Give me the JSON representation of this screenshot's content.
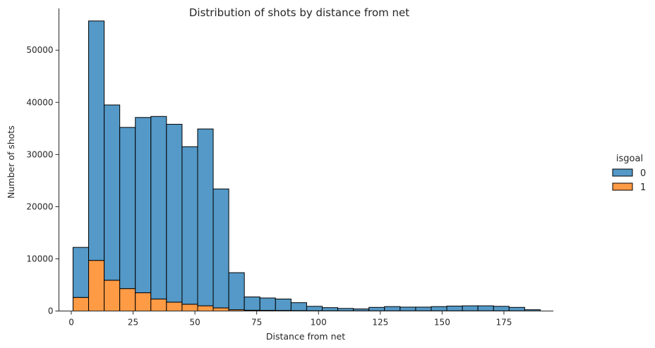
{
  "chart_data": {
    "type": "bar",
    "title": "Distribution of shots by distance from net",
    "xlabel": "Distance from net",
    "ylabel": "Number of shots",
    "xlim": [
      -5,
      195
    ],
    "ylim": [
      0,
      58000
    ],
    "xticks": [
      0,
      25,
      50,
      75,
      100,
      125,
      150,
      175
    ],
    "yticks": [
      0,
      10000,
      20000,
      30000,
      40000,
      50000
    ],
    "bin_edges": [
      0.7,
      7.0,
      13.3,
      19.6,
      25.9,
      32.2,
      38.5,
      44.8,
      51.1,
      57.4,
      63.7,
      70.0,
      76.3,
      82.6,
      88.9,
      95.2,
      101.5,
      107.8,
      114.1,
      120.4,
      126.7,
      133.0,
      139.3,
      145.6,
      151.9,
      158.2,
      164.5,
      170.8,
      177.1,
      183.4,
      189.7
    ],
    "stacked": true,
    "legend_title": "isgoal",
    "legend_position": "right",
    "grid": false,
    "series": [
      {
        "name": "1",
        "color": "#ff9a45",
        "edge_color": "#000000",
        "values": [
          2600,
          9700,
          5900,
          4300,
          3500,
          2300,
          1700,
          1300,
          1000,
          600,
          250,
          150,
          120,
          100,
          80,
          60,
          50,
          40,
          40,
          40,
          40,
          40,
          40,
          40,
          40,
          40,
          40,
          40,
          40,
          20
        ]
      },
      {
        "name": "0",
        "color": "#5499c7",
        "edge_color": "#000000",
        "values": [
          9600,
          45900,
          33600,
          30900,
          33600,
          35000,
          34100,
          30200,
          33900,
          22800,
          7100,
          2550,
          2380,
          2200,
          1520,
          840,
          600,
          460,
          360,
          660,
          810,
          710,
          710,
          810,
          910,
          960,
          960,
          860,
          660,
          230
        ]
      }
    ]
  }
}
